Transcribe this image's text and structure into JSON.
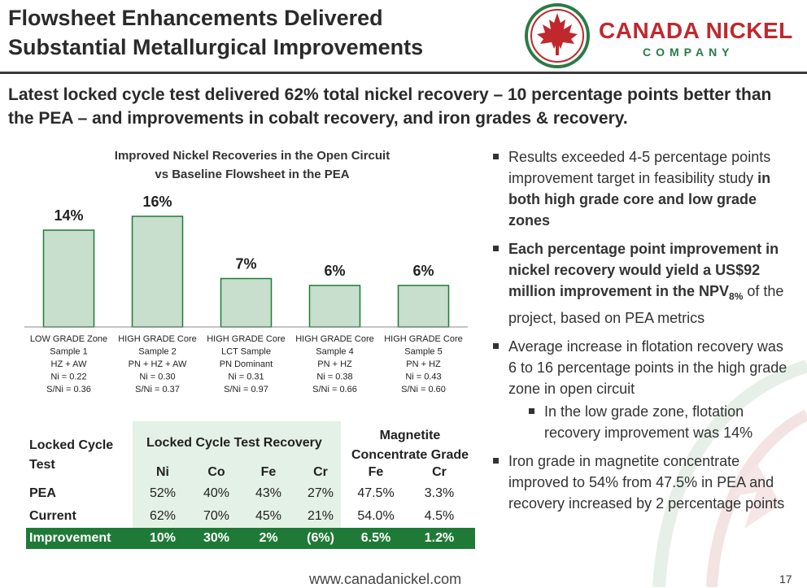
{
  "title": [
    "Flowsheet Enhancements Delivered",
    "Substantial Metallurgical Improvements"
  ],
  "logo": {
    "name": "CANADA NICKEL",
    "sub": "COMPANY"
  },
  "subtitle": "Latest locked cycle test delivered 62% total nickel recovery – 10 percentage points better than  the PEA – and improvements in cobalt recovery, and iron grades & recovery.",
  "colors": {
    "bar_fill": "#c7dfcc",
    "bar_stroke": "#1f7a37",
    "brand_red": "#c0282d",
    "brand_green": "#1f7a37"
  },
  "chart_data": {
    "type": "bar",
    "title": [
      "Improved Nickel Recoveries in the Open Circuit",
      "vs Baseline Flowsheet in the PEA"
    ],
    "categories": [
      [
        "LOW GRADE Zone",
        "Sample 1",
        "HZ + AW",
        "Ni = 0.22",
        "S/Ni = 0.36"
      ],
      [
        "HIGH GRADE Core",
        "Sample 2",
        "PN + HZ + AW",
        "Ni = 0.30",
        "S/Ni = 0.37"
      ],
      [
        "HIGH GRADE Core",
        "LCT Sample",
        "PN Dominant",
        "Ni = 0.31",
        "S/Ni = 0.97"
      ],
      [
        "HIGH GRADE Core",
        "Sample 4",
        "PN + HZ",
        "Ni = 0.38",
        "S/Ni = 0.66"
      ],
      [
        "HIGH GRADE Core",
        "Sample 5",
        "PN + HZ",
        "Ni = 0.43",
        "S/Ni = 0.60"
      ]
    ],
    "values": [
      14,
      16,
      7,
      6,
      6
    ],
    "labels": [
      "14%",
      "16%",
      "7%",
      "6%",
      "6%"
    ],
    "ylim": [
      0,
      16
    ],
    "grid": false
  },
  "table": {
    "header_test": [
      "Locked Cycle",
      "Test"
    ],
    "header_lct": "Locked Cycle Test Recovery",
    "header_mag": [
      "Magnetite",
      "Concentrate Grade"
    ],
    "sub_headers": [
      "Ni",
      "Co",
      "Fe",
      "Cr",
      "Fe",
      "Cr"
    ],
    "rows": [
      {
        "label": "PEA",
        "values": [
          "52%",
          "40%",
          "43%",
          "27%",
          "47.5%",
          "3.3%"
        ]
      },
      {
        "label": "Current",
        "values": [
          "62%",
          "70%",
          "45%",
          "21%",
          "54.0%",
          "4.5%"
        ]
      },
      {
        "label": "Improvement",
        "values": [
          "10%",
          "30%",
          "2%",
          "(6%)",
          "6.5%",
          "1.2%"
        ]
      }
    ]
  },
  "bullets": {
    "b1_pre": "Results exceeded 4-5 percentage points improvement target in feasibility study ",
    "b1_bold": "in both high grade core and low grade zones",
    "b2_bold": "Each percentage point improvement in nickel recovery would yield a US$92 million improvement in the NPV",
    "b2_sub": "8%",
    "b2_post": " of the project, based on PEA metrics",
    "b3": "Average increase in flotation recovery was 6 to 16 percentage points in the high grade zone in open circuit",
    "b3_sub": "In the low grade zone, flotation recovery improvement was 14%",
    "b4": "Iron grade in magnetite concentrate improved to 54% from 47.5% in PEA and recovery increased by 2 percentage points"
  },
  "footer": "www.canadanickel.com",
  "page_number": "17"
}
